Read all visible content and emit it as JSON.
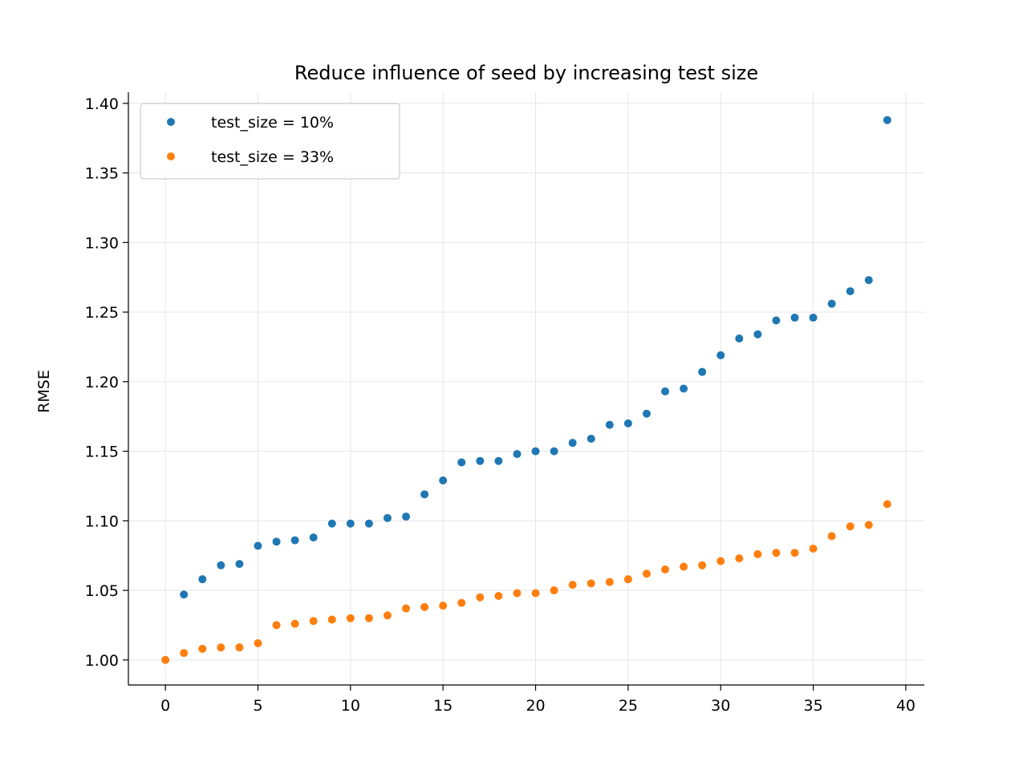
{
  "chart_data": {
    "type": "scatter",
    "title": "Reduce influence of seed by increasing test size",
    "xlabel": "",
    "ylabel": "RMSE",
    "xlim": [
      -2,
      41
    ],
    "ylim": [
      0.982,
      1.408
    ],
    "xticks": [
      0,
      5,
      10,
      15,
      20,
      25,
      30,
      35,
      40
    ],
    "yticks": [
      1.0,
      1.05,
      1.1,
      1.15,
      1.2,
      1.25,
      1.3,
      1.35,
      1.4
    ],
    "xtick_labels": [
      "0",
      "5",
      "10",
      "15",
      "20",
      "25",
      "30",
      "35",
      "40"
    ],
    "ytick_labels": [
      "1.00",
      "1.05",
      "1.10",
      "1.15",
      "1.20",
      "1.25",
      "1.30",
      "1.35",
      "1.40"
    ],
    "grid": true,
    "legend_position": "top-left",
    "series": [
      {
        "name": "test_size = 10%",
        "color": "#1f77b4",
        "x": [
          1,
          2,
          3,
          4,
          5,
          6,
          7,
          8,
          9,
          10,
          11,
          12,
          13,
          14,
          15,
          16,
          17,
          18,
          19,
          20,
          21,
          22,
          23,
          24,
          25,
          26,
          27,
          28,
          29,
          30,
          31,
          32,
          33,
          34,
          35,
          36,
          37,
          38,
          39
        ],
        "y": [
          1.047,
          1.058,
          1.068,
          1.069,
          1.082,
          1.085,
          1.086,
          1.088,
          1.098,
          1.098,
          1.098,
          1.102,
          1.103,
          1.119,
          1.129,
          1.142,
          1.143,
          1.143,
          1.148,
          1.15,
          1.15,
          1.156,
          1.159,
          1.169,
          1.17,
          1.177,
          1.193,
          1.195,
          1.207,
          1.219,
          1.231,
          1.234,
          1.244,
          1.246,
          1.246,
          1.256,
          1.265,
          1.273,
          1.388
        ]
      },
      {
        "name": "test_size = 33%",
        "color": "#ff7f0e",
        "x": [
          0,
          1,
          2,
          3,
          4,
          5,
          6,
          7,
          8,
          9,
          10,
          11,
          12,
          13,
          14,
          15,
          16,
          17,
          18,
          19,
          20,
          21,
          22,
          23,
          24,
          25,
          26,
          27,
          28,
          29,
          30,
          31,
          32,
          33,
          34,
          35,
          36,
          37,
          38,
          39
        ],
        "y": [
          1.0,
          1.005,
          1.008,
          1.009,
          1.009,
          1.012,
          1.025,
          1.026,
          1.028,
          1.029,
          1.03,
          1.03,
          1.032,
          1.037,
          1.038,
          1.039,
          1.041,
          1.045,
          1.046,
          1.048,
          1.048,
          1.05,
          1.054,
          1.055,
          1.056,
          1.058,
          1.062,
          1.065,
          1.067,
          1.068,
          1.071,
          1.073,
          1.076,
          1.077,
          1.077,
          1.08,
          1.089,
          1.096,
          1.097,
          1.112
        ]
      }
    ]
  }
}
